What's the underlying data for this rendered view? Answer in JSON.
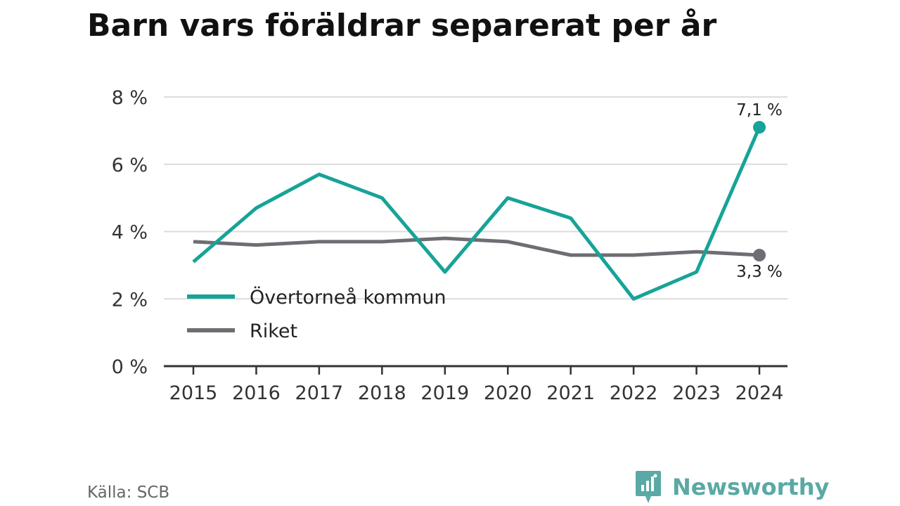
{
  "title": "Barn vars föräldrar separerat per år",
  "source": "Källa: SCB",
  "brand": {
    "name": "Newsworthy",
    "icon": "newsworthy-logo-icon",
    "color": "#5aa9a4"
  },
  "chart_data": {
    "type": "line",
    "title": "Barn vars föräldrar separerat per år",
    "xlabel": "",
    "ylabel": "",
    "x": [
      2015,
      2016,
      2017,
      2018,
      2019,
      2020,
      2021,
      2022,
      2023,
      2024
    ],
    "ylim": [
      0,
      8
    ],
    "yticks": [
      0,
      2,
      4,
      6,
      8
    ],
    "ytick_labels": [
      "0 %",
      "2 %",
      "4 %",
      "6 %",
      "8 %"
    ],
    "grid": true,
    "legend_position": "lower-left",
    "series": [
      {
        "name": "Övertorneå kommun",
        "color": "#17a398",
        "values": [
          3.1,
          4.7,
          5.7,
          5.0,
          2.8,
          5.0,
          4.4,
          2.0,
          2.8,
          7.1
        ],
        "end_label": "7,1 %"
      },
      {
        "name": "Riket",
        "color": "#6e6d73",
        "values": [
          3.7,
          3.6,
          3.7,
          3.7,
          3.8,
          3.7,
          3.3,
          3.3,
          3.4,
          3.3
        ],
        "end_label": "3,3 %"
      }
    ]
  }
}
